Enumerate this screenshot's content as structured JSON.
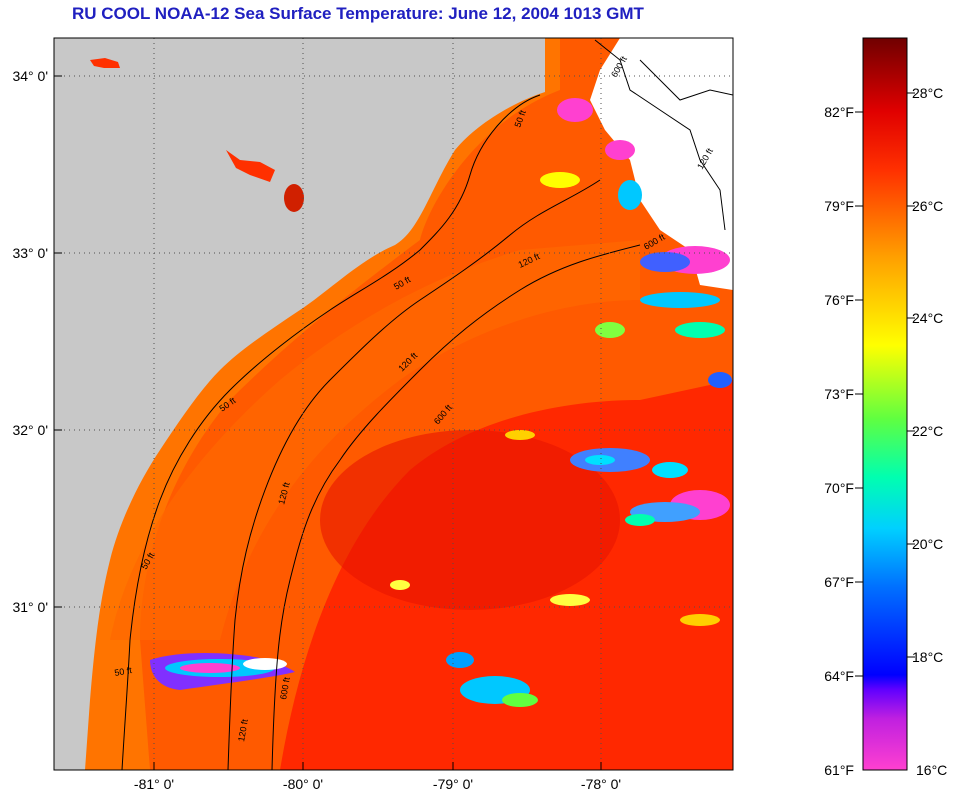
{
  "title": "RU COOL  NOAA-12  Sea Surface Temperature:  June 12, 2004 1013 GMT",
  "map": {
    "lat_ticks": [
      "34° 0'",
      "33° 0'",
      "32° 0'",
      "31° 0'"
    ],
    "lon_ticks": [
      "-81° 0'",
      "-80° 0'",
      "-79° 0'",
      "-78° 0'"
    ],
    "contour_labels": [
      "50 ft",
      "50 ft",
      "50 ft",
      "50 ft",
      "50 ft",
      "120 ft",
      "120 ft",
      "120 ft",
      "120 ft",
      "120 ft",
      "600 ft",
      "600 ft",
      "600 ft",
      "600 ft"
    ],
    "colors": {
      "land": "#c8c8c8",
      "no_data": "#ffffff",
      "sea_warm": "#ff2a00",
      "sea_mid": "#ff8000",
      "grid": "#404040"
    }
  },
  "colorbar": {
    "fahrenheit_labels": [
      "82°F",
      "79°F",
      "76°F",
      "73°F",
      "70°F",
      "67°F",
      "64°F",
      "61°F"
    ],
    "celsius_labels": [
      "28°C",
      "26°C",
      "24°C",
      "22°C",
      "20°C",
      "18°C",
      "16°C"
    ],
    "range_celsius": [
      16,
      29
    ],
    "colors": [
      "#ff40d0",
      "#8000ff",
      "#0000ff",
      "#0080ff",
      "#00e0ff",
      "#00ff80",
      "#80ff00",
      "#ffff00",
      "#ffa000",
      "#ff5000",
      "#ff0000",
      "#b00000",
      "#700000"
    ]
  }
}
